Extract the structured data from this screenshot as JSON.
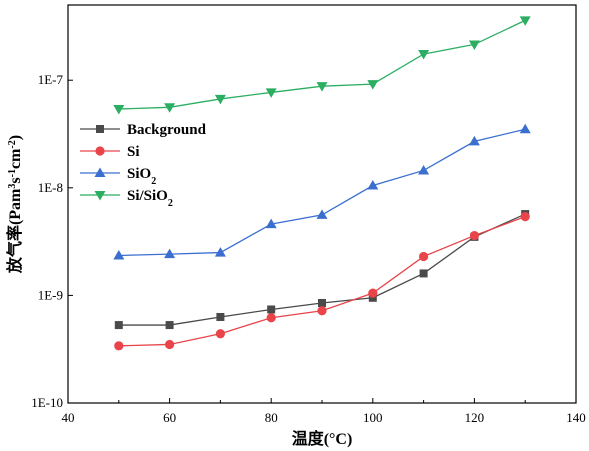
{
  "chart_data": {
    "type": "line",
    "xlabel": "温度(°C)",
    "ylabel_parts": [
      "放气率(Pam",
      "3",
      "s",
      "-1",
      "cm",
      "-2",
      ")"
    ],
    "xlim": [
      40,
      140
    ],
    "x_ticks": [
      40,
      60,
      80,
      100,
      120,
      140
    ],
    "ylim": [
      1e-10,
      5e-07
    ],
    "yscale": "log",
    "y_ticks": [
      {
        "value": 1e-10,
        "label": "1E-10"
      },
      {
        "value": 1e-09,
        "label": "1E-9"
      },
      {
        "value": 1e-08,
        "label": "1E-8"
      },
      {
        "value": 1e-07,
        "label": "1E-7"
      }
    ],
    "grid": false,
    "legend_position": "upper-left",
    "x": [
      50,
      60,
      70,
      80,
      90,
      100,
      110,
      120,
      130
    ],
    "series": [
      {
        "name": "Background",
        "legend_parts": [
          "Background"
        ],
        "marker": "square",
        "color": "#4a4a4a",
        "values": [
          5.3e-10,
          5.3e-10,
          6.3e-10,
          7.4e-10,
          8.5e-10,
          9.5e-10,
          1.6e-09,
          3.5e-09,
          5.7e-09
        ]
      },
      {
        "name": "Si",
        "legend_parts": [
          "Si"
        ],
        "marker": "circle",
        "color": "#e8444a",
        "values": [
          3.4e-10,
          3.5e-10,
          4.4e-10,
          6.2e-10,
          7.2e-10,
          1.05e-09,
          2.3e-09,
          3.6e-09,
          5.4e-09
        ]
      },
      {
        "name": "SiO2",
        "legend_parts": [
          "SiO",
          "2"
        ],
        "marker": "triangle-up",
        "color": "#3a6fd0",
        "values": [
          2.35e-09,
          2.42e-09,
          2.5e-09,
          4.6e-09,
          5.6e-09,
          1.05e-08,
          1.45e-08,
          2.7e-08,
          3.5e-08
        ]
      },
      {
        "name": "Si/SiO2",
        "legend_parts": [
          "Si/SiO",
          "2"
        ],
        "marker": "triangle-down",
        "color": "#2cae62",
        "values": [
          5.4e-08,
          5.6e-08,
          6.7e-08,
          7.7e-08,
          8.8e-08,
          9.2e-08,
          1.75e-07,
          2.15e-07,
          3.6e-07
        ]
      }
    ]
  }
}
